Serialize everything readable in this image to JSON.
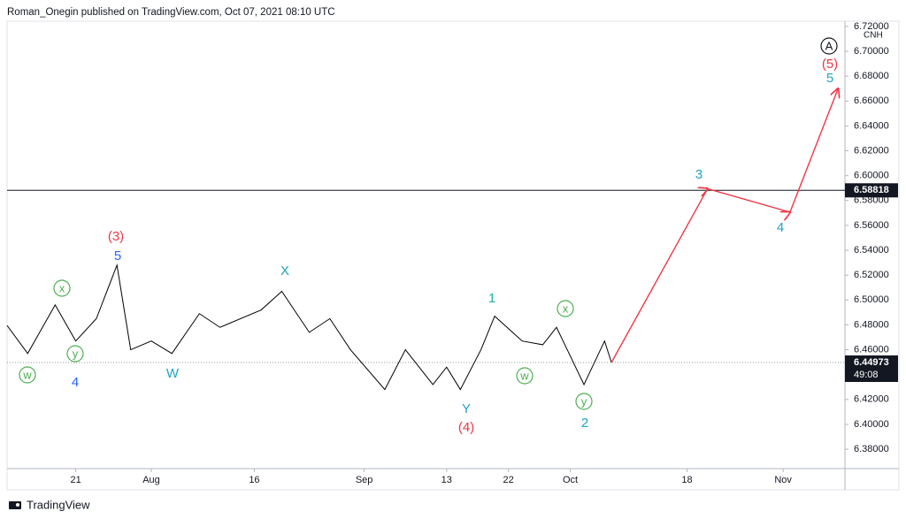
{
  "header": {
    "text": "Roman_Onegin published on TradingView.com, Oct 07, 2021 08:10 UTC"
  },
  "chart_data": {
    "type": "line",
    "symbol": "CNH",
    "series": [
      {
        "color": "#000000",
        "x": [
          "2021-07-11",
          "2021-07-14",
          "2021-07-18",
          "2021-07-21",
          "2021-07-24",
          "2021-07-27",
          "2021-07-29",
          "2021-08-01",
          "2021-08-04",
          "2021-08-08",
          "2021-08-11",
          "2021-08-17",
          "2021-08-20",
          "2021-08-24",
          "2021-08-27",
          "2021-08-30",
          "2021-09-04",
          "2021-09-07",
          "2021-09-11",
          "2021-09-13",
          "2021-09-15",
          "2021-09-18",
          "2021-09-20",
          "2021-09-24",
          "2021-09-27",
          "2021-09-29",
          "2021-10-03",
          "2021-10-06",
          "2021-10-07"
        ],
        "values": [
          6.4795,
          6.457,
          6.496,
          6.467,
          6.485,
          6.528,
          6.46,
          6.467,
          6.457,
          6.489,
          6.478,
          6.492,
          6.507,
          6.474,
          6.485,
          6.46,
          6.428,
          6.46,
          6.432,
          6.446,
          6.428,
          6.46,
          6.487,
          6.467,
          6.464,
          6.478,
          6.432,
          6.467,
          6.44973
        ]
      },
      {
        "color": "#f23645",
        "x": [
          "2021-10-07",
          "2021-10-21",
          "2021-11-02",
          "2021-11-09"
        ],
        "values": [
          6.44973,
          6.5895,
          6.5706,
          6.67
        ]
      }
    ],
    "xlim": [
      "2021-07-11",
      "2021-11-10"
    ],
    "ylim": [
      6.3644,
      6.7242
    ],
    "xticks": [
      {
        "value": "2021-07-21",
        "label": "21"
      },
      {
        "value": "2021-08-01",
        "label": "Aug"
      },
      {
        "value": "2021-08-16",
        "label": "16"
      },
      {
        "value": "2021-09-01",
        "label": "Sep"
      },
      {
        "value": "2021-09-13",
        "label": "13"
      },
      {
        "value": "2021-09-22",
        "label": "22"
      },
      {
        "value": "2021-10-01",
        "label": "Oct"
      },
      {
        "value": "2021-10-18",
        "label": "18"
      },
      {
        "value": "2021-11-01",
        "label": "Nov"
      }
    ],
    "yticks": [
      {
        "value": 6.38,
        "label": "6.38000"
      },
      {
        "value": 6.4,
        "label": "6.40000"
      },
      {
        "value": 6.42,
        "label": "6.42000"
      },
      {
        "value": 6.44,
        "label": "6.44000"
      },
      {
        "value": 6.46,
        "label": "6.46000"
      },
      {
        "value": 6.48,
        "label": "6.48000"
      },
      {
        "value": 6.5,
        "label": "6.50000"
      },
      {
        "value": 6.52,
        "label": "6.52000"
      },
      {
        "value": 6.54,
        "label": "6.54000"
      },
      {
        "value": 6.56,
        "label": "6.56000"
      },
      {
        "value": 6.58,
        "label": "6.58000"
      },
      {
        "value": 6.6,
        "label": "6.60000"
      },
      {
        "value": 6.62,
        "label": "6.62000"
      },
      {
        "value": 6.64,
        "label": "6.64000"
      },
      {
        "value": 6.66,
        "label": "6.66000"
      },
      {
        "value": 6.68,
        "label": "6.68000"
      },
      {
        "value": 6.7,
        "label": "6.70000"
      },
      {
        "value": 6.72,
        "label": "6.72000"
      }
    ],
    "grid": false,
    "hline": 6.58818,
    "last_price": 6.44973,
    "countdown": "49:08",
    "annotations": [
      {
        "text": "(3)",
        "color": "#f23645",
        "circled": false
      },
      {
        "text": "5",
        "color": "#2962ff",
        "circled": false
      },
      {
        "text": "x",
        "color": "#4caf50",
        "circled": true
      },
      {
        "text": "y",
        "color": "#4caf50",
        "circled": true
      },
      {
        "text": "w",
        "color": "#4caf50",
        "circled": true
      },
      {
        "text": "4",
        "color": "#2962ff",
        "circled": false
      },
      {
        "text": "W",
        "color": "#1fa3c9",
        "circled": false
      },
      {
        "text": "X",
        "color": "#1fa3c9",
        "circled": false
      },
      {
        "text": "Y",
        "color": "#1fa3c9",
        "circled": false
      },
      {
        "text": "(4)",
        "color": "#f23645",
        "circled": false
      },
      {
        "text": "1",
        "color": "#22b0b0",
        "circled": false
      },
      {
        "text": "w",
        "color": "#4caf50",
        "circled": true
      },
      {
        "text": "x",
        "color": "#4caf50",
        "circled": true
      },
      {
        "text": "y",
        "color": "#4caf50",
        "circled": true
      },
      {
        "text": "2",
        "color": "#1fa3c9",
        "circled": false
      },
      {
        "text": "3",
        "color": "#1fa3c9",
        "circled": false
      },
      {
        "text": "4",
        "color": "#1fa3c9",
        "circled": false
      },
      {
        "text": "5",
        "color": "#1fa3c9",
        "circled": false
      },
      {
        "text": "(5)",
        "color": "#f23645",
        "circled": false
      },
      {
        "text": "A",
        "color": "#131722",
        "circled": true
      }
    ]
  },
  "footer": {
    "brand": "TradingView"
  }
}
